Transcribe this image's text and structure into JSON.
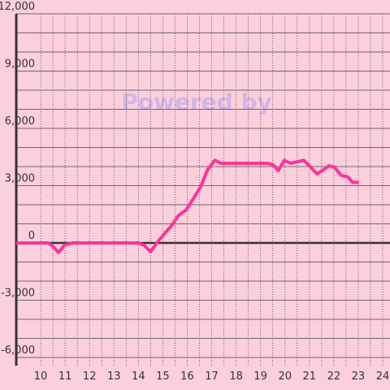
{
  "chart_data": {
    "type": "line",
    "watermark": "Powered by",
    "x": [
      9,
      10,
      10.3,
      10.5,
      10.73,
      10.97,
      11.3,
      12,
      13,
      13.97,
      14.23,
      14.5,
      14.8,
      15.13,
      15.37,
      15.63,
      15.97,
      16.3,
      16.57,
      16.83,
      17.13,
      17.37,
      17.63,
      18.5,
      19.3,
      19.53,
      19.73,
      19.97,
      20.23,
      20.5,
      20.77,
      21.03,
      21.3,
      21.57,
      21.8,
      22.03,
      22.3,
      22.57,
      22.77,
      23.03
    ],
    "series": [
      {
        "color": "#ff3399",
        "values": [
          0,
          0,
          0,
          -170,
          -500,
          -120,
          0,
          0,
          0,
          0,
          -120,
          -460,
          80,
          580,
          920,
          1420,
          1750,
          2420,
          3000,
          3830,
          4330,
          4170,
          4170,
          4170,
          4170,
          4080,
          3790,
          4330,
          4170,
          4250,
          4330,
          4000,
          3620,
          3830,
          4040,
          3960,
          3540,
          3460,
          3170,
          3170
        ]
      }
    ],
    "xlim": [
      9,
      24.3
    ],
    "xticks": [
      10,
      11,
      12,
      13,
      14,
      15,
      16,
      17,
      18,
      19,
      20,
      21,
      22,
      23,
      24
    ],
    "xminor": [
      10.5,
      11.5,
      12.5,
      13.5,
      14.5,
      15.5,
      16.5,
      17.5,
      18.5,
      19.5,
      20.5,
      21.5,
      22.5,
      23.5
    ],
    "ylim": [
      -6000,
      12000
    ],
    "yticks": [
      {
        "value": -6000,
        "label": "-6,000"
      },
      {
        "value": -3000,
        "label": "-3,000"
      },
      0,
      {
        "value": 3000,
        "label": "3,000"
      },
      {
        "value": 6000,
        "label": "6,000"
      },
      {
        "value": 9000,
        "label": "9,000"
      },
      {
        "value": 12000,
        "label": "12,000"
      }
    ],
    "yminor": [
      -5000,
      -4000,
      -2000,
      -1000,
      1000,
      2000,
      4000,
      5000,
      7000,
      8000,
      10000,
      11000
    ],
    "grid": true
  }
}
